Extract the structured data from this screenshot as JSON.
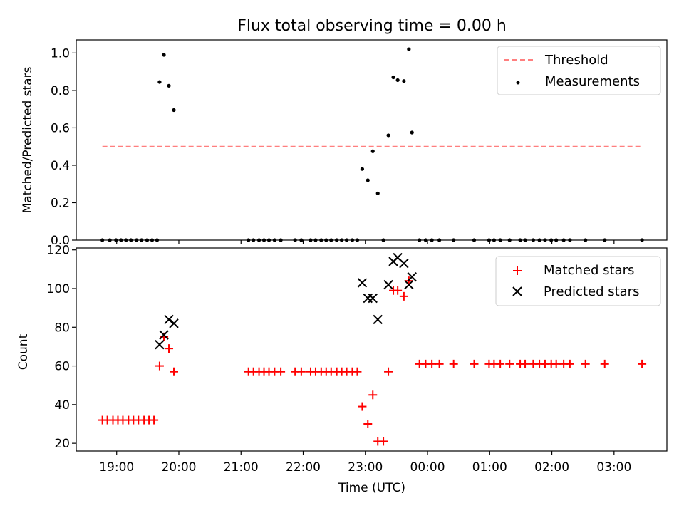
{
  "chart_data": [
    {
      "type": "scatter",
      "title": "Flux total observing time = 0.00 h",
      "xlabel": "",
      "ylabel": "Matched/Predicted stars",
      "xlim": [
        -0.42,
        9.08
      ],
      "ylim": [
        0,
        1.07
      ],
      "yticks": [
        "0.0",
        "0.2",
        "0.4",
        "0.6",
        "0.8",
        "1.0"
      ],
      "ytick_values": [
        0,
        0.2,
        0.4,
        0.6,
        0.8,
        1.0
      ],
      "legend": [
        "Threshold",
        "Measurements"
      ],
      "legend_position": "top-right",
      "threshold": {
        "name": "Threshold",
        "value": 0.5,
        "x_range": [
          0.0,
          8.68
        ],
        "color": "#ff7f7f"
      },
      "series": [
        {
          "name": "Measurements",
          "color": "#000000",
          "points": [
            [
              0.0,
              0
            ],
            [
              0.12,
              0
            ],
            [
              0.22,
              0
            ],
            [
              0.3,
              0
            ],
            [
              0.38,
              0
            ],
            [
              0.46,
              0
            ],
            [
              0.55,
              0
            ],
            [
              0.63,
              0
            ],
            [
              0.72,
              0
            ],
            [
              0.8,
              0
            ],
            [
              0.88,
              0
            ],
            [
              0.92,
              0.845
            ],
            [
              0.99,
              0.99
            ],
            [
              1.07,
              0.825
            ],
            [
              1.15,
              0.695
            ],
            [
              2.35,
              0
            ],
            [
              2.43,
              0
            ],
            [
              2.52,
              0
            ],
            [
              2.6,
              0
            ],
            [
              2.68,
              0
            ],
            [
              2.77,
              0
            ],
            [
              2.87,
              0
            ],
            [
              3.1,
              0
            ],
            [
              3.2,
              0
            ],
            [
              3.35,
              0
            ],
            [
              3.43,
              0
            ],
            [
              3.52,
              0
            ],
            [
              3.6,
              0
            ],
            [
              3.68,
              0
            ],
            [
              3.77,
              0
            ],
            [
              3.85,
              0
            ],
            [
              3.93,
              0
            ],
            [
              4.02,
              0
            ],
            [
              4.1,
              0
            ],
            [
              4.18,
              0.38
            ],
            [
              4.27,
              0.32
            ],
            [
              4.35,
              0.475
            ],
            [
              4.43,
              0.25
            ],
            [
              4.52,
              0
            ],
            [
              4.6,
              0.56
            ],
            [
              4.68,
              0.87
            ],
            [
              4.75,
              0.855
            ],
            [
              4.85,
              0.85
            ],
            [
              4.93,
              1.02
            ],
            [
              4.98,
              0.575
            ],
            [
              5.1,
              0
            ],
            [
              5.2,
              0
            ],
            [
              5.3,
              0
            ],
            [
              5.42,
              0
            ],
            [
              5.65,
              0
            ],
            [
              5.98,
              0
            ],
            [
              6.22,
              0
            ],
            [
              6.3,
              0
            ],
            [
              6.4,
              0
            ],
            [
              6.55,
              0
            ],
            [
              6.72,
              0
            ],
            [
              6.8,
              0
            ],
            [
              6.93,
              0
            ],
            [
              7.03,
              0
            ],
            [
              7.12,
              0
            ],
            [
              7.22,
              0
            ],
            [
              7.3,
              0
            ],
            [
              7.42,
              0
            ],
            [
              7.52,
              0
            ],
            [
              7.77,
              0
            ],
            [
              8.08,
              0
            ],
            [
              8.68,
              0
            ]
          ]
        }
      ]
    },
    {
      "type": "scatter",
      "title": "",
      "xlabel": "Time (UTC)",
      "ylabel": "Count",
      "xlim": [
        -0.42,
        9.08
      ],
      "ylim": [
        16,
        121
      ],
      "yticks": [
        "20",
        "40",
        "60",
        "80",
        "100",
        "120"
      ],
      "ytick_values": [
        20,
        40,
        60,
        80,
        100,
        120
      ],
      "xticks": [
        "19:00",
        "20:00",
        "21:00",
        "22:00",
        "23:00",
        "00:00",
        "01:00",
        "02:00",
        "03:00"
      ],
      "xtick_values": [
        0.23,
        1.23,
        2.23,
        3.23,
        4.23,
        5.23,
        6.23,
        7.23,
        8.23
      ],
      "legend": [
        "Matched stars",
        "Predicted stars"
      ],
      "legend_position": "top-right",
      "series": [
        {
          "name": "Matched stars",
          "marker": "+",
          "color": "#ff0000",
          "points": [
            [
              0.0,
              32
            ],
            [
              0.08,
              32
            ],
            [
              0.17,
              32
            ],
            [
              0.25,
              32
            ],
            [
              0.33,
              32
            ],
            [
              0.42,
              32
            ],
            [
              0.5,
              32
            ],
            [
              0.58,
              32
            ],
            [
              0.67,
              32
            ],
            [
              0.75,
              32
            ],
            [
              0.83,
              32
            ],
            [
              0.92,
              60
            ],
            [
              0.99,
              75
            ],
            [
              1.07,
              69
            ],
            [
              1.15,
              57
            ],
            [
              2.35,
              57
            ],
            [
              2.43,
              57
            ],
            [
              2.52,
              57
            ],
            [
              2.6,
              57
            ],
            [
              2.68,
              57
            ],
            [
              2.77,
              57
            ],
            [
              2.87,
              57
            ],
            [
              3.1,
              57
            ],
            [
              3.2,
              57
            ],
            [
              3.35,
              57
            ],
            [
              3.43,
              57
            ],
            [
              3.52,
              57
            ],
            [
              3.6,
              57
            ],
            [
              3.68,
              57
            ],
            [
              3.77,
              57
            ],
            [
              3.85,
              57
            ],
            [
              3.93,
              57
            ],
            [
              4.02,
              57
            ],
            [
              4.1,
              57
            ],
            [
              4.18,
              39
            ],
            [
              4.27,
              30
            ],
            [
              4.35,
              45
            ],
            [
              4.43,
              21
            ],
            [
              4.52,
              21
            ],
            [
              4.6,
              57
            ],
            [
              4.68,
              99
            ],
            [
              4.75,
              99
            ],
            [
              4.85,
              96
            ],
            [
              4.93,
              104
            ],
            [
              5.1,
              61
            ],
            [
              5.2,
              61
            ],
            [
              5.3,
              61
            ],
            [
              5.42,
              61
            ],
            [
              5.65,
              61
            ],
            [
              5.98,
              61
            ],
            [
              6.22,
              61
            ],
            [
              6.3,
              61
            ],
            [
              6.4,
              61
            ],
            [
              6.55,
              61
            ],
            [
              6.72,
              61
            ],
            [
              6.8,
              61
            ],
            [
              6.93,
              61
            ],
            [
              7.03,
              61
            ],
            [
              7.12,
              61
            ],
            [
              7.22,
              61
            ],
            [
              7.3,
              61
            ],
            [
              7.42,
              61
            ],
            [
              7.52,
              61
            ],
            [
              7.77,
              61
            ],
            [
              8.08,
              61
            ],
            [
              8.68,
              61
            ]
          ]
        },
        {
          "name": "Predicted stars",
          "marker": "x",
          "color": "#000000",
          "points": [
            [
              0.92,
              71
            ],
            [
              0.99,
              76
            ],
            [
              1.07,
              84
            ],
            [
              1.15,
              82
            ],
            [
              4.18,
              103
            ],
            [
              4.27,
              95
            ],
            [
              4.35,
              95
            ],
            [
              4.43,
              84
            ],
            [
              4.6,
              102
            ],
            [
              4.68,
              114
            ],
            [
              4.75,
              116
            ],
            [
              4.85,
              113
            ],
            [
              4.93,
              102
            ],
            [
              4.98,
              106
            ]
          ]
        }
      ]
    }
  ]
}
